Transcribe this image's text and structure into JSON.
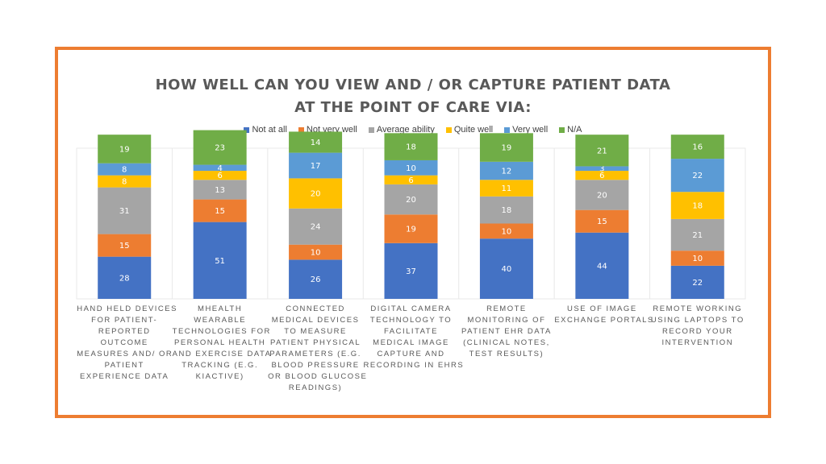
{
  "title_lines": [
    "HOW WELL CAN YOU VIEW AND / OR CAPTURE PATIENT DATA",
    "AT THE POINT OF CARE VIA:"
  ],
  "colors": {
    "frame": "#ED7D31",
    "series": [
      "#4472C4",
      "#ED7D31",
      "#A5A5A5",
      "#FFC000",
      "#5B9BD5",
      "#70AD47"
    ],
    "title": "#595959",
    "label_dark": "#404040"
  },
  "chart_data": {
    "type": "bar",
    "stacked": true,
    "title": "HOW WELL CAN YOU VIEW AND / OR CAPTURE PATIENT DATA AT THE POINT OF CARE VIA:",
    "legend_position": "top",
    "categories": [
      [
        "HAND HELD DEVICES",
        "FOR PATIENT-",
        "REPORTED",
        "OUTCOME",
        "MEASURES AND/ OR",
        "PATIENT",
        "EXPERIENCE DATA"
      ],
      [
        "MHEALTH",
        "WEARABLE",
        "TECHNOLOGIES FOR",
        "PERSONAL HEALTH",
        "AND EXERCISE DATA",
        "TRACKING (E.G.",
        "KIACTIVE)"
      ],
      [
        "CONNECTED",
        "MEDICAL DEVICES",
        "TO MEASURE",
        "PATIENT PHYSICAL",
        "PARAMETERS (E.G.",
        "BLOOD PRESSURE",
        "OR BLOOD GLUCOSE",
        "READINGS)"
      ],
      [
        "DIGITAL CAMERA",
        "TECHNOLOGY TO",
        "FACILITATE",
        "MEDICAL IMAGE",
        "CAPTURE AND",
        "RECORDING IN EHRS"
      ],
      [
        "REMOTE",
        "MONITORING OF",
        "PATIENT EHR DATA",
        "(CLINICAL NOTES,",
        "TEST RESULTS)"
      ],
      [
        "USE OF IMAGE",
        "EXCHANGE PORTALS"
      ],
      [
        "REMOTE WORKING",
        "USING LAPTOPS TO",
        "RECORD YOUR",
        "INTERVENTION"
      ]
    ],
    "series": [
      {
        "name": "Not at all",
        "values": [
          28,
          51,
          26,
          37,
          40,
          44,
          22
        ]
      },
      {
        "name": "Not very well",
        "values": [
          15,
          15,
          10,
          19,
          10,
          15,
          10
        ]
      },
      {
        "name": "Average ability",
        "values": [
          31,
          13,
          24,
          20,
          18,
          20,
          21
        ]
      },
      {
        "name": "Quite well",
        "values": [
          8,
          6,
          20,
          6,
          11,
          6,
          18
        ]
      },
      {
        "name": "Very well",
        "values": [
          8,
          4,
          17,
          10,
          12,
          3,
          22
        ]
      },
      {
        "name": "N/A",
        "values": [
          19,
          23,
          14,
          18,
          19,
          21,
          16
        ]
      }
    ]
  }
}
